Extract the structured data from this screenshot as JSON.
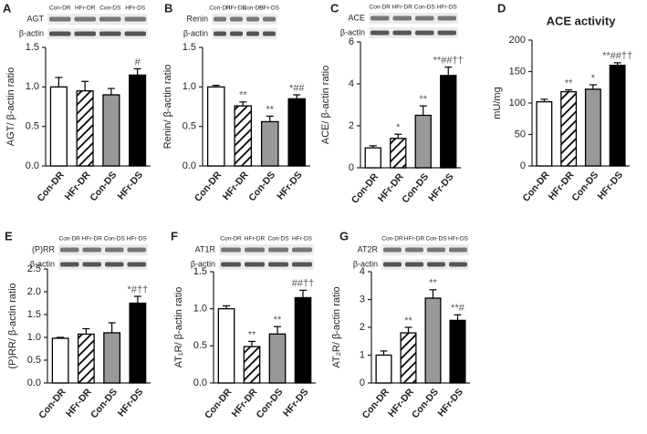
{
  "chart_data": [
    {
      "type": "bar",
      "panel": "A",
      "blot": {
        "lanes": [
          "Con-DR",
          "HFr-DR",
          "Con-DS",
          "HFr-DS"
        ],
        "rows": [
          "AGT",
          "β-actin"
        ]
      },
      "y_label": "AGT/ β-actin ratio",
      "categories": [
        "Con-DR",
        "HFr-DR",
        "Con-DS",
        "HFr-DS"
      ],
      "values": [
        1.0,
        0.95,
        0.9,
        1.15
      ],
      "errors": [
        0.12,
        0.12,
        0.08,
        0.08
      ],
      "annotations": [
        null,
        null,
        null,
        "#"
      ],
      "bar_colors": [
        "#ffffff",
        "#ffffff",
        "#999999",
        "#000000"
      ],
      "hatched": [
        false,
        true,
        false,
        false
      ],
      "ylim": [
        0,
        1.5
      ],
      "yticks": [
        {
          "value": 0,
          "label": "0.0"
        },
        0.5,
        {
          "value": 1,
          "label": "1.0"
        },
        1.5
      ]
    },
    {
      "type": "bar",
      "panel": "B",
      "blot": {
        "lanes": [
          "Con-DR",
          "HFr-DR",
          "Con-DS",
          "HFr-DS"
        ],
        "rows": [
          "Renin",
          "β-actin"
        ]
      },
      "y_label": "Renin/ β-actin ratio",
      "categories": [
        "Con-DR",
        "HFr-DR",
        "Con-DS",
        "HFr-DS"
      ],
      "values": [
        1.0,
        0.76,
        0.56,
        0.85
      ],
      "errors": [
        0.02,
        0.05,
        0.07,
        0.05
      ],
      "annotations": [
        null,
        "**",
        "**",
        "*##"
      ],
      "bar_colors": [
        "#ffffff",
        "#ffffff",
        "#999999",
        "#000000"
      ],
      "hatched": [
        false,
        true,
        false,
        false
      ],
      "ylim": [
        0,
        1.5
      ],
      "yticks": [
        {
          "value": 0,
          "label": "0.0"
        },
        0.5,
        {
          "value": 1,
          "label": "1.0"
        },
        1.5
      ]
    },
    {
      "type": "bar",
      "panel": "C",
      "blot": {
        "lanes": [
          "Con-DR",
          "HFr-DR",
          "Con-DS",
          "HFr-DS"
        ],
        "rows": [
          "ACE",
          "β-actin"
        ]
      },
      "y_label": "ACE/ β-actin ratio",
      "categories": [
        "Con-DR",
        "HFr-DR",
        "Con-DS",
        "HFr-DS"
      ],
      "values": [
        0.95,
        1.4,
        2.5,
        4.4
      ],
      "errors": [
        0.1,
        0.2,
        0.45,
        0.4
      ],
      "annotations": [
        null,
        "*",
        "**",
        "**##††"
      ],
      "bar_colors": [
        "#ffffff",
        "#ffffff",
        "#999999",
        "#000000"
      ],
      "hatched": [
        false,
        true,
        false,
        false
      ],
      "ylim": [
        0,
        6
      ],
      "yticks": [
        0,
        2,
        4,
        6
      ]
    },
    {
      "type": "bar",
      "panel": "D",
      "title": "ACE activity",
      "y_label": "mU/mg",
      "categories": [
        "Con-DR",
        "HFr-DR",
        "Con-DS",
        "HFr-DS"
      ],
      "values": [
        102,
        118,
        122,
        160
      ],
      "errors": [
        4,
        3,
        7,
        4
      ],
      "annotations": [
        null,
        "**",
        "*",
        "**##††"
      ],
      "bar_colors": [
        "#ffffff",
        "#ffffff",
        "#999999",
        "#000000"
      ],
      "hatched": [
        false,
        true,
        false,
        false
      ],
      "ylim": [
        0,
        200
      ],
      "yticks": [
        0,
        50,
        100,
        150,
        200
      ]
    },
    {
      "type": "bar",
      "panel": "E",
      "blot": {
        "lanes": [
          "Con-DR",
          "HFr-DR",
          "Con-DS",
          "HFr-DS"
        ],
        "rows": [
          "(P)RR",
          "β-actin"
        ]
      },
      "y_label": "(P)RR/ β-actin ratio",
      "categories": [
        "Con-DR",
        "HFr-DR",
        "Con-DS",
        "HFr-DS"
      ],
      "values": [
        0.98,
        1.07,
        1.1,
        1.75
      ],
      "errors": [
        0.02,
        0.12,
        0.22,
        0.15
      ],
      "annotations": [
        null,
        null,
        null,
        "*#††"
      ],
      "bar_colors": [
        "#ffffff",
        "#ffffff",
        "#999999",
        "#000000"
      ],
      "hatched": [
        false,
        true,
        false,
        false
      ],
      "ylim": [
        0,
        2.5
      ],
      "yticks": [
        {
          "value": 0,
          "label": "0.0"
        },
        0.5,
        {
          "value": 1,
          "label": "1.0"
        },
        1.5,
        {
          "value": 2,
          "label": "2.0"
        },
        2.5
      ]
    },
    {
      "type": "bar",
      "panel": "F",
      "blot": {
        "lanes": [
          "Con-DR",
          "HFr-DR",
          "Con-DS",
          "HFr-DS"
        ],
        "rows": [
          "AT1R",
          "β-actin"
        ]
      },
      "y_label": "AT₁R/ β-actin ratio",
      "categories": [
        "Con-DR",
        "HFr-DR",
        "Con-DS",
        "HFr-DS"
      ],
      "values": [
        1.0,
        0.49,
        0.66,
        1.15
      ],
      "errors": [
        0.04,
        0.07,
        0.1,
        0.1
      ],
      "annotations": [
        null,
        "**",
        "**",
        "##††"
      ],
      "bar_colors": [
        "#ffffff",
        "#ffffff",
        "#999999",
        "#000000"
      ],
      "hatched": [
        false,
        true,
        false,
        false
      ],
      "ylim": [
        0,
        1.5
      ],
      "yticks": [
        {
          "value": 0,
          "label": "0.0"
        },
        0.5,
        {
          "value": 1,
          "label": "1.0"
        },
        1.5
      ]
    },
    {
      "type": "bar",
      "panel": "G",
      "blot": {
        "lanes": [
          "Con-DR",
          "HFr-DR",
          "Con-DS",
          "HFr-DS"
        ],
        "rows": [
          "AT2R",
          "β-actin"
        ]
      },
      "y_label": "AT₂R/ β-actin ratio",
      "categories": [
        "Con-DR",
        "HFr-DR",
        "Con-DS",
        "HFr-DS"
      ],
      "values": [
        1.0,
        1.8,
        3.05,
        2.25
      ],
      "errors": [
        0.15,
        0.2,
        0.3,
        0.2
      ],
      "annotations": [
        null,
        "**",
        "**",
        "**#"
      ],
      "bar_colors": [
        "#ffffff",
        "#ffffff",
        "#999999",
        "#000000"
      ],
      "hatched": [
        false,
        true,
        false,
        false
      ],
      "ylim": [
        0,
        4
      ],
      "yticks": [
        0,
        1,
        2,
        3,
        4
      ]
    }
  ]
}
